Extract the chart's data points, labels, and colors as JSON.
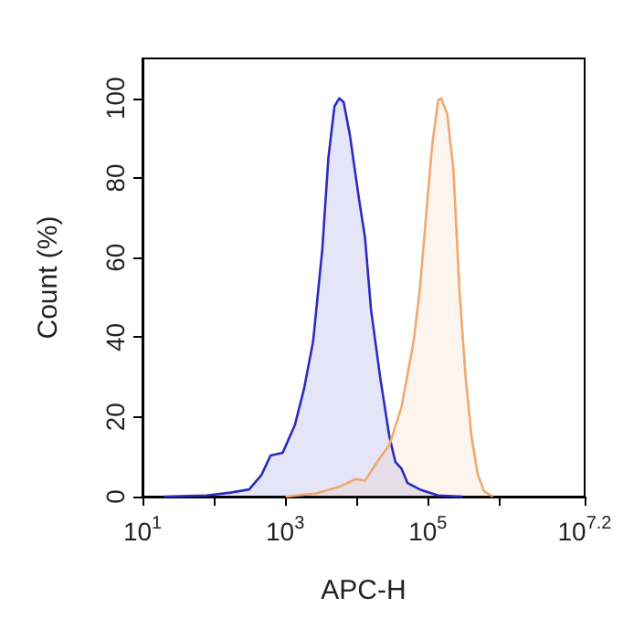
{
  "chart_data": {
    "type": "area",
    "xlabel": "APC-H",
    "ylabel": "Count (%)",
    "log": "x",
    "grid": false,
    "marker": "none",
    "xlim": [
      10,
      15848932
    ],
    "ylim": [
      0,
      110
    ],
    "xticks": [
      {
        "value": 10,
        "label": "10$^{1}$"
      },
      {
        "value": 100,
        "label": null
      },
      {
        "value": 1000,
        "label": "10$^{3}$"
      },
      {
        "value": 10000,
        "label": null
      },
      {
        "value": 100000,
        "label": "10$^{5}$"
      },
      {
        "value": 1000000,
        "label": null
      },
      {
        "value": 15848932,
        "label": "10$^{7.2}$"
      }
    ],
    "yticks": [
      0,
      20,
      40,
      60,
      80,
      100
    ],
    "series": [
      {
        "color": "#2b2bbf",
        "x": [
          20,
          79,
          173,
          313,
          465,
          624,
          925,
          1370,
          1840,
          2470,
          3320,
          4040,
          4920,
          5770,
          6620,
          8060,
          10800,
          13200,
          16000,
          21500,
          29000,
          35200,
          42900,
          52200,
          77400,
          140000,
          307000
        ],
        "values": [
          0,
          0.3,
          1,
          1.8,
          5.4,
          10.3,
          11,
          18,
          27,
          39,
          62,
          85,
          98,
          100,
          99,
          91,
          75,
          65,
          47,
          30,
          15,
          8.7,
          7,
          3.4,
          1.8,
          0.3,
          0
        ]
      },
      {
        "color": "#f0a870",
        "x": [
          1020,
          2730,
          6000,
          9800,
          13200,
          19500,
          29000,
          42900,
          63500,
          77400,
          94200,
          115000,
          140000,
          154000,
          188000,
          229000,
          278000,
          339000,
          412000,
          502000,
          611000,
          822000
        ],
        "values": [
          0,
          0.8,
          2.6,
          4.4,
          4,
          8.7,
          13,
          22.5,
          39,
          52,
          70,
          88,
          99.5,
          100,
          96,
          82,
          52,
          30,
          15,
          5.7,
          1.4,
          0
        ]
      }
    ]
  }
}
